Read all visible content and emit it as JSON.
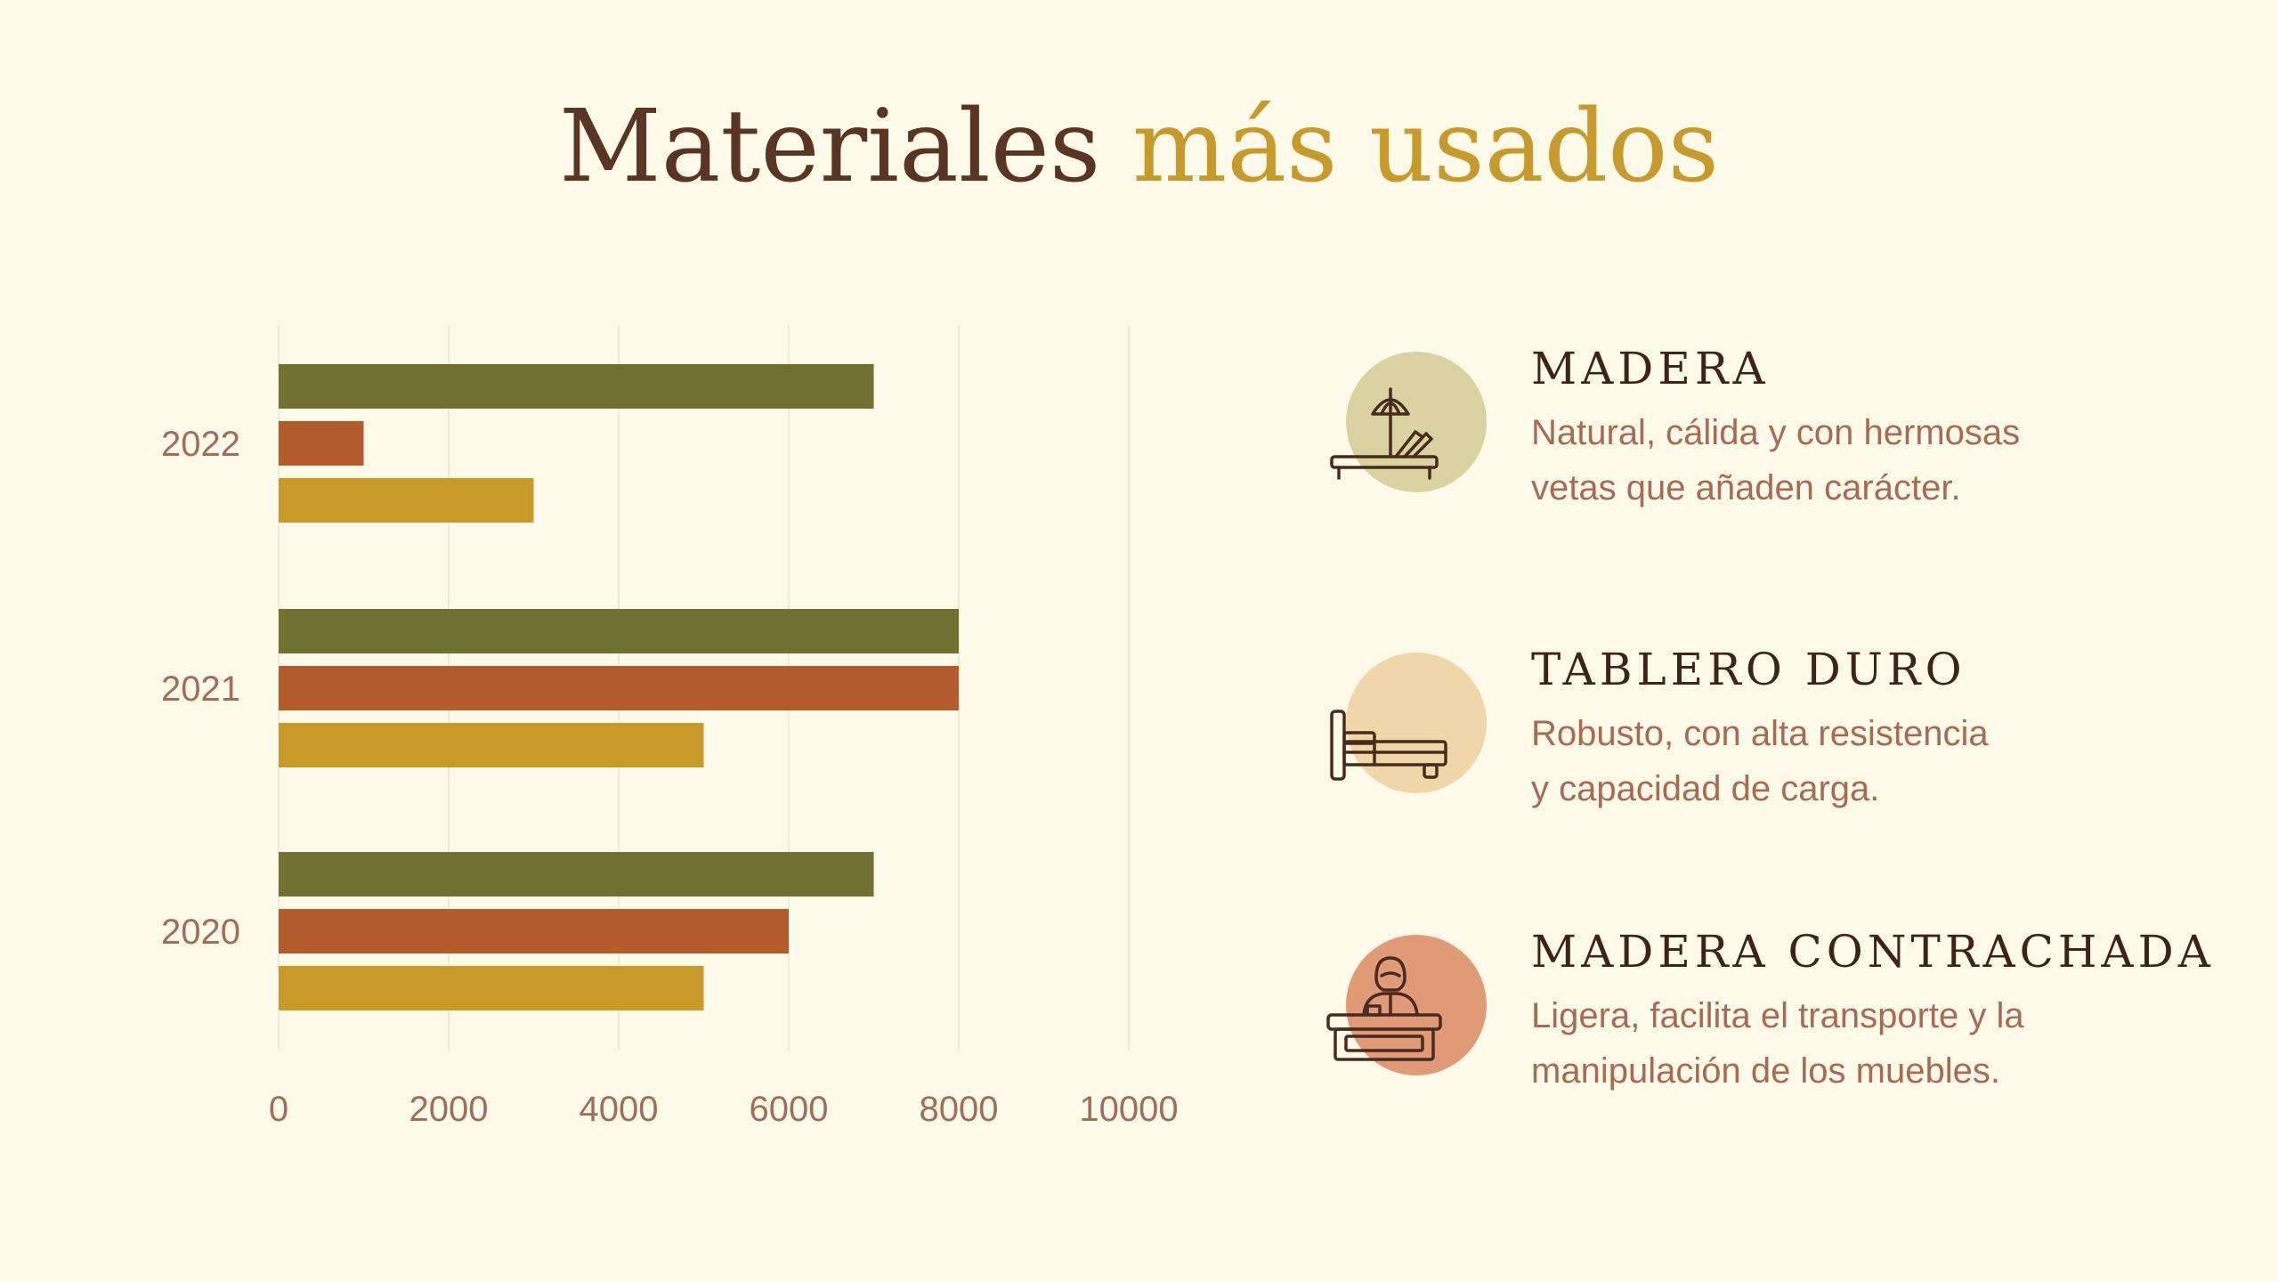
{
  "title": {
    "main": "Materiales",
    "accent": "más usados"
  },
  "colors": {
    "background": "#fefaea",
    "series_madera": "#737130",
    "series_tablero": "#b35b2c",
    "series_contrachapada": "#c89a2a",
    "title": "#5a3524",
    "title_accent": "#c69a2c"
  },
  "chart_data": {
    "type": "bar",
    "orientation": "horizontal",
    "categories": [
      "2020",
      "2021",
      "2022"
    ],
    "series": [
      {
        "color": "#737130",
        "values": [
          7000,
          8000,
          7000
        ]
      },
      {
        "color": "#b35b2c",
        "values": [
          6000,
          8000,
          1000
        ]
      },
      {
        "color": "#c89a2a",
        "values": [
          5000,
          5000,
          3000
        ]
      }
    ],
    "xlim": [
      0,
      10000
    ],
    "xticks": [
      "0",
      "2000",
      "4000",
      "6000",
      "8000",
      "10000"
    ],
    "grid": "vertical"
  },
  "legend_items": [
    {
      "heading": "MADERA",
      "desc_line1": "Natural, cálida y con hermosas",
      "desc_line2": "vetas que añaden carácter.",
      "circle_color": "#d8d3a0",
      "icon": "sun-lounger-umbrella-icon"
    },
    {
      "heading": "TABLERO DURO",
      "desc_line1": "Robusto, con alta resistencia",
      "desc_line2": "y capacidad de carga.",
      "circle_color": "#efd7a7",
      "icon": "bed-icon"
    },
    {
      "heading": "MADERA CONTRACHADA",
      "desc_line1": "Ligera, facilita el transporte y la",
      "desc_line2": "manipulación de los muebles.",
      "circle_color": "#df9a77",
      "icon": "reception-desk-icon"
    }
  ]
}
